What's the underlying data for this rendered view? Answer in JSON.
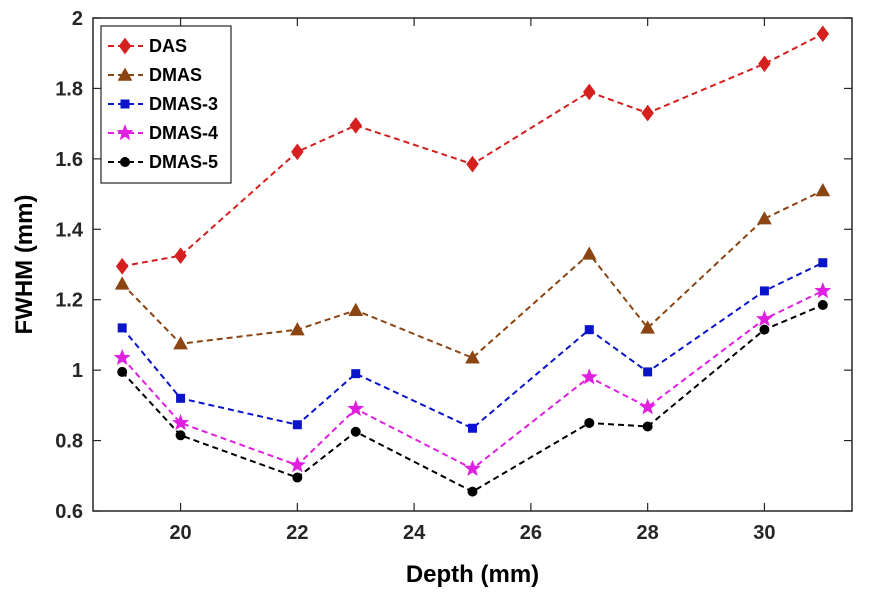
{
  "chart_data": {
    "type": "line",
    "title": "",
    "xlabel": "Depth (mm)",
    "ylabel": "FWHM (mm)",
    "xlim": [
      18.5,
      31.5
    ],
    "ylim": [
      0.6,
      2.0
    ],
    "xticks": [
      20,
      22,
      24,
      26,
      28,
      30
    ],
    "xtick_labels": [
      "20",
      "22",
      "24",
      "26",
      "28",
      "30"
    ],
    "yticks": [
      0.6,
      0.8,
      1.0,
      1.2,
      1.4,
      1.6,
      1.8,
      2.0
    ],
    "ytick_labels": [
      "0.6",
      "0.8",
      "1",
      "1.2",
      "1.4",
      "1.6",
      "1.8",
      "2"
    ],
    "grid": false,
    "legend_position": "top-left",
    "x": [
      19,
      20,
      22,
      23,
      25,
      27,
      28,
      30,
      31
    ],
    "series": [
      {
        "name": "DAS",
        "color": "#d62020",
        "marker": "diamond",
        "values": [
          1.295,
          1.325,
          1.62,
          1.695,
          1.585,
          1.79,
          1.73,
          1.87,
          1.955
        ]
      },
      {
        "name": "DMAS",
        "color": "#8b4513",
        "marker": "triangle",
        "values": [
          1.245,
          1.075,
          1.115,
          1.17,
          1.035,
          1.33,
          1.12,
          1.43,
          1.51
        ]
      },
      {
        "name": "DMAS-3",
        "color": "#0a14c8",
        "marker": "square",
        "values": [
          1.12,
          0.92,
          0.845,
          0.99,
          0.835,
          1.115,
          0.995,
          1.225,
          1.305
        ]
      },
      {
        "name": "DMAS-4",
        "color": "#e020e0",
        "marker": "star",
        "values": [
          1.035,
          0.85,
          0.73,
          0.89,
          0.72,
          0.98,
          0.895,
          1.145,
          1.225
        ]
      },
      {
        "name": "DMAS-5",
        "color": "#000000",
        "marker": "circle",
        "values": [
          0.995,
          0.815,
          0.695,
          0.825,
          0.655,
          0.85,
          0.84,
          1.115,
          1.185
        ]
      }
    ]
  }
}
